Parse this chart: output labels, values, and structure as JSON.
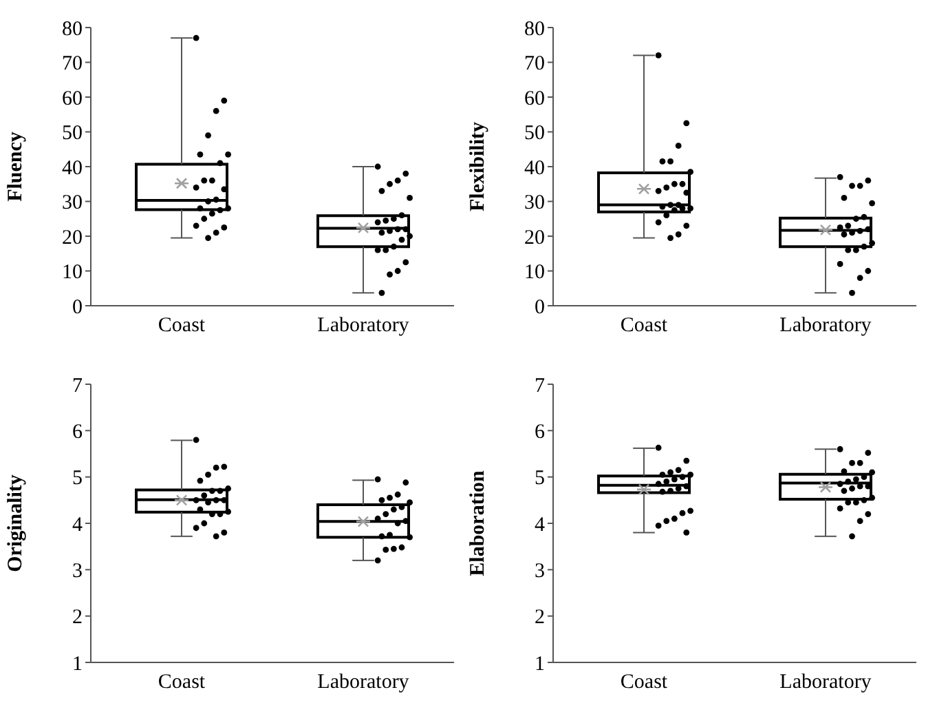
{
  "chart_data": [
    {
      "type": "box",
      "ylabel": "Fluency",
      "categories": [
        "Coast",
        "Laboratory"
      ],
      "ylim": [
        0,
        80
      ],
      "yticks": [
        0,
        10,
        20,
        30,
        40,
        50,
        60,
        70,
        80
      ],
      "marker": "circle",
      "boxes": [
        {
          "low": 19.5,
          "q1": 27.6,
          "median": 30.3,
          "q3": 40.7,
          "high": 77,
          "mean": 35.2
        },
        {
          "low": 3.7,
          "q1": 17,
          "median": 22.3,
          "q3": 25.9,
          "high": 40,
          "mean": 22.4
        }
      ],
      "series": [
        {
          "type": "scatter",
          "color": "#000000",
          "x": [
            "Coast",
            "Coast",
            "Coast",
            "Coast",
            "Coast",
            "Coast",
            "Coast",
            "Coast",
            "Coast",
            "Coast",
            "Coast",
            "Coast",
            "Coast",
            "Coast",
            "Coast",
            "Coast",
            "Coast",
            "Coast",
            "Coast",
            "Coast",
            "Coast",
            "Coast",
            "Laboratory",
            "Laboratory",
            "Laboratory",
            "Laboratory",
            "Laboratory",
            "Laboratory",
            "Laboratory",
            "Laboratory",
            "Laboratory",
            "Laboratory",
            "Laboratory",
            "Laboratory",
            "Laboratory",
            "Laboratory",
            "Laboratory",
            "Laboratory",
            "Laboratory",
            "Laboratory",
            "Laboratory",
            "Laboratory",
            "Laboratory",
            "Laboratory",
            "Laboratory"
          ],
          "values": [
            77,
            59,
            56,
            49,
            43.5,
            43.5,
            41,
            36,
            36,
            34,
            33.5,
            30.5,
            30,
            28,
            28,
            27.5,
            26.5,
            25,
            23,
            22.5,
            21,
            19.5,
            40,
            38,
            36,
            35,
            33,
            31,
            26,
            25,
            24.5,
            24,
            22,
            22,
            21.5,
            21,
            20,
            19,
            17,
            16,
            16,
            12.5,
            10,
            9,
            3.7
          ]
        }
      ]
    },
    {
      "type": "box",
      "ylabel": "Flexibility",
      "categories": [
        "Coast",
        "Laboratory"
      ],
      "ylim": [
        0,
        80
      ],
      "yticks": [
        0,
        10,
        20,
        30,
        40,
        50,
        60,
        70,
        80
      ],
      "marker": "circle",
      "boxes": [
        {
          "low": 19.5,
          "q1": 27,
          "median": 29,
          "q3": 38.2,
          "high": 72,
          "mean": 33.6
        },
        {
          "low": 3.7,
          "q1": 17,
          "median": 21.7,
          "q3": 25.2,
          "high": 36.7,
          "mean": 21.8
        }
      ],
      "series": [
        {
          "type": "scatter",
          "color": "#000000",
          "x": [
            "Coast",
            "Coast",
            "Coast",
            "Coast",
            "Coast",
            "Coast",
            "Coast",
            "Coast",
            "Coast",
            "Coast",
            "Coast",
            "Coast",
            "Coast",
            "Coast",
            "Coast",
            "Coast",
            "Coast",
            "Coast",
            "Coast",
            "Coast",
            "Coast",
            "Coast",
            "Laboratory",
            "Laboratory",
            "Laboratory",
            "Laboratory",
            "Laboratory",
            "Laboratory",
            "Laboratory",
            "Laboratory",
            "Laboratory",
            "Laboratory",
            "Laboratory",
            "Laboratory",
            "Laboratory",
            "Laboratory",
            "Laboratory",
            "Laboratory",
            "Laboratory",
            "Laboratory",
            "Laboratory",
            "Laboratory",
            "Laboratory",
            "Laboratory"
          ],
          "values": [
            72,
            52.5,
            46,
            41.5,
            41.5,
            38.5,
            35,
            35,
            34,
            33,
            32.5,
            29,
            29,
            28.5,
            28,
            28,
            27.5,
            26,
            24,
            23,
            20.5,
            19.5,
            37,
            36,
            34.5,
            34.5,
            31,
            29.5,
            25.5,
            25,
            23,
            22.5,
            22,
            21.5,
            21,
            20.5,
            18,
            17,
            16,
            16,
            12,
            10,
            8,
            3.7
          ]
        }
      ]
    },
    {
      "type": "box",
      "ylabel": "Originality",
      "categories": [
        "Coast",
        "Laboratory"
      ],
      "ylim": [
        1,
        7
      ],
      "yticks": [
        1,
        2,
        3,
        4,
        5,
        6,
        7
      ],
      "marker": "circle",
      "boxes": [
        {
          "low": 3.72,
          "q1": 4.24,
          "median": 4.51,
          "q3": 4.72,
          "high": 5.79,
          "mean": 4.5
        },
        {
          "low": 3.2,
          "q1": 3.7,
          "median": 4.04,
          "q3": 4.4,
          "high": 4.93,
          "mean": 4.04
        }
      ],
      "series": [
        {
          "type": "scatter",
          "color": "#000000",
          "x": [
            "Coast",
            "Coast",
            "Coast",
            "Coast",
            "Coast",
            "Coast",
            "Coast",
            "Coast",
            "Coast",
            "Coast",
            "Coast",
            "Coast",
            "Coast",
            "Coast",
            "Coast",
            "Coast",
            "Coast",
            "Coast",
            "Coast",
            "Coast",
            "Coast",
            "Laboratory",
            "Laboratory",
            "Laboratory",
            "Laboratory",
            "Laboratory",
            "Laboratory",
            "Laboratory",
            "Laboratory",
            "Laboratory",
            "Laboratory",
            "Laboratory",
            "Laboratory",
            "Laboratory",
            "Laboratory",
            "Laboratory",
            "Laboratory",
            "Laboratory",
            "Laboratory",
            "Laboratory"
          ],
          "values": [
            5.8,
            5.22,
            5.2,
            5.05,
            4.92,
            4.75,
            4.7,
            4.7,
            4.6,
            4.5,
            4.5,
            4.5,
            4.45,
            4.3,
            4.25,
            4.2,
            4.2,
            4.0,
            3.9,
            3.8,
            3.72,
            4.95,
            4.88,
            4.62,
            4.55,
            4.5,
            4.45,
            4.35,
            4.3,
            4.2,
            4.1,
            4.05,
            4.0,
            3.75,
            3.72,
            3.7,
            3.48,
            3.45,
            3.43,
            3.2
          ]
        }
      ]
    },
    {
      "type": "box",
      "ylabel": "Elaboration",
      "categories": [
        "Coast",
        "Laboratory"
      ],
      "ylim": [
        1,
        7
      ],
      "yticks": [
        1,
        2,
        3,
        4,
        5,
        6,
        7
      ],
      "marker": "circle",
      "boxes": [
        {
          "low": 3.8,
          "q1": 4.66,
          "median": 4.82,
          "q3": 5.02,
          "high": 5.62,
          "mean": 4.73
        },
        {
          "low": 3.72,
          "q1": 4.52,
          "median": 4.87,
          "q3": 5.06,
          "high": 5.6,
          "mean": 4.78
        }
      ],
      "series": [
        {
          "type": "scatter",
          "color": "#000000",
          "x": [
            "Coast",
            "Coast",
            "Coast",
            "Coast",
            "Coast",
            "Coast",
            "Coast",
            "Coast",
            "Coast",
            "Coast",
            "Coast",
            "Coast",
            "Coast",
            "Coast",
            "Coast",
            "Coast",
            "Coast",
            "Coast",
            "Coast",
            "Coast",
            "Laboratory",
            "Laboratory",
            "Laboratory",
            "Laboratory",
            "Laboratory",
            "Laboratory",
            "Laboratory",
            "Laboratory",
            "Laboratory",
            "Laboratory",
            "Laboratory",
            "Laboratory",
            "Laboratory",
            "Laboratory",
            "Laboratory",
            "Laboratory",
            "Laboratory",
            "Laboratory",
            "Laboratory",
            "Laboratory",
            "Laboratory",
            "Laboratory"
          ],
          "values": [
            5.63,
            5.35,
            5.15,
            5.1,
            5.05,
            5.05,
            5.0,
            4.95,
            4.9,
            4.85,
            4.8,
            4.75,
            4.7,
            4.68,
            4.27,
            4.22,
            4.1,
            4.05,
            3.95,
            3.8,
            5.6,
            5.52,
            5.3,
            5.3,
            5.12,
            5.1,
            5.0,
            4.95,
            4.9,
            4.85,
            4.8,
            4.8,
            4.75,
            4.7,
            4.55,
            4.5,
            4.45,
            4.45,
            4.32,
            4.2,
            4.05,
            3.72
          ]
        }
      ]
    }
  ]
}
